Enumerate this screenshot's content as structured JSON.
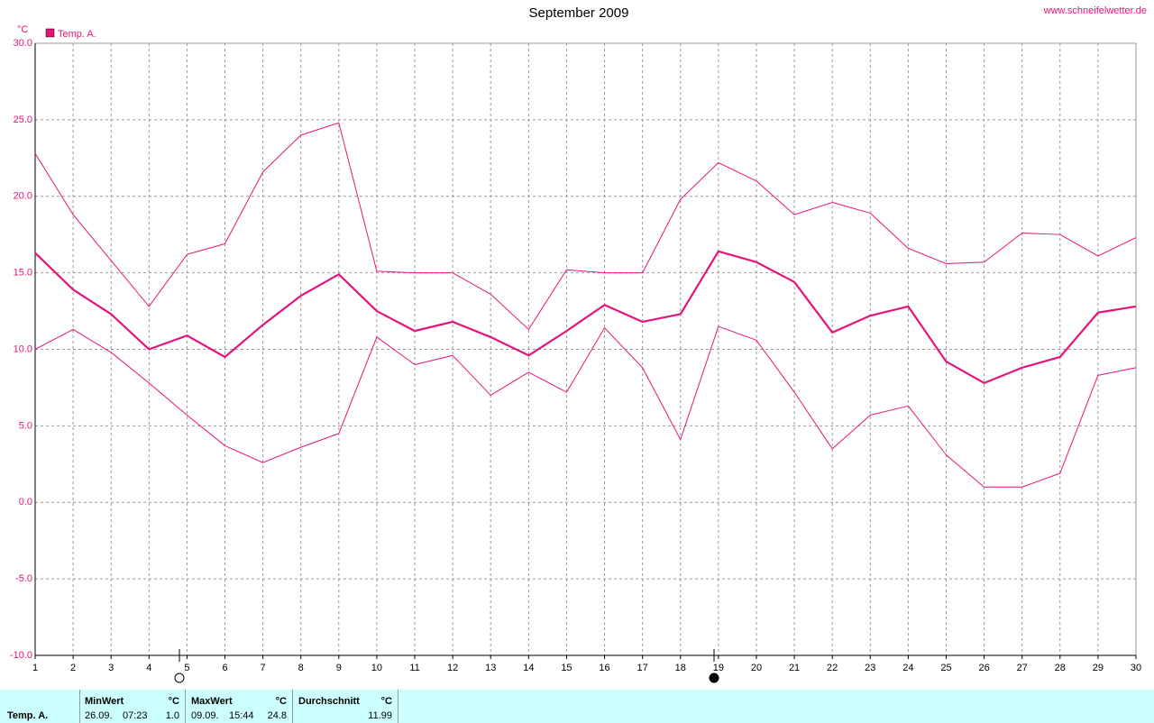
{
  "chart_data": {
    "type": "line",
    "title": "September 2009",
    "source": "www.schneifelwetter.de",
    "y_label": "°C",
    "legend": "Temp. A.",
    "x": [
      1,
      2,
      3,
      4,
      5,
      6,
      7,
      8,
      9,
      10,
      11,
      12,
      13,
      14,
      15,
      16,
      17,
      18,
      19,
      20,
      21,
      22,
      23,
      24,
      25,
      26,
      27,
      28,
      29,
      30
    ],
    "series": [
      {
        "color": "#e6147a",
        "width": 1,
        "values": [
          22.8,
          18.8,
          15.8,
          12.8,
          16.2,
          16.9,
          21.6,
          24.0,
          24.8,
          15.1,
          15.0,
          15.0,
          13.6,
          11.3,
          15.2,
          15.0,
          15.0,
          19.8,
          22.2,
          21.0,
          18.8,
          19.6,
          18.9,
          16.6,
          15.6,
          15.7,
          17.6,
          17.5,
          16.1,
          17.3
        ]
      },
      {
        "color": "#e6147a",
        "width": 2.2,
        "values": [
          16.3,
          13.9,
          12.3,
          10.0,
          10.9,
          9.5,
          11.6,
          13.5,
          14.9,
          12.5,
          11.2,
          11.8,
          10.8,
          9.6,
          11.2,
          12.9,
          11.8,
          12.3,
          16.4,
          15.7,
          14.4,
          11.1,
          12.2,
          12.8,
          9.2,
          7.8,
          8.8,
          9.5,
          12.4,
          12.8
        ]
      },
      {
        "color": "#e6147a",
        "width": 1,
        "values": [
          10.0,
          11.3,
          9.8,
          7.8,
          5.7,
          3.7,
          2.6,
          3.6,
          4.5,
          10.8,
          9.0,
          9.6,
          7.0,
          8.5,
          7.2,
          11.4,
          8.8,
          4.1,
          11.5,
          10.6,
          7.2,
          3.5,
          5.7,
          6.3,
          3.1,
          1.0,
          1.0,
          1.9,
          8.3,
          8.8
        ]
      }
    ],
    "xlim": [
      1,
      30
    ],
    "xticks": [
      1,
      2,
      3,
      4,
      5,
      6,
      7,
      8,
      9,
      10,
      11,
      12,
      13,
      14,
      15,
      16,
      17,
      18,
      19,
      20,
      21,
      22,
      23,
      24,
      25,
      26,
      27,
      28,
      29,
      30
    ],
    "ylim": [
      -10,
      30
    ],
    "yticks": [
      {
        "value": -10,
        "label": "-10.0"
      },
      {
        "value": -5,
        "label": "-5.0"
      },
      {
        "value": 0,
        "label": "0.0"
      },
      {
        "value": 5,
        "label": "5.0"
      },
      {
        "value": 10,
        "label": "10.0"
      },
      {
        "value": 15,
        "label": "15.0"
      },
      {
        "value": 20,
        "label": "20.0"
      },
      {
        "value": 25,
        "label": "25.0"
      },
      {
        "value": 30,
        "label": "30.0"
      }
    ],
    "grid": true
  },
  "summary": {
    "row_label": "Temp. A.",
    "columns": [
      {
        "header": "MinWert",
        "unit": "°C",
        "date": "26.09.",
        "time": "07:23",
        "value": "1.0"
      },
      {
        "header": "MaxWert",
        "unit": "°C",
        "date": "09.09.",
        "time": "15:44",
        "value": "24.8"
      },
      {
        "header": "Durchschnitt",
        "unit": "°C",
        "value": "11.99"
      }
    ]
  }
}
